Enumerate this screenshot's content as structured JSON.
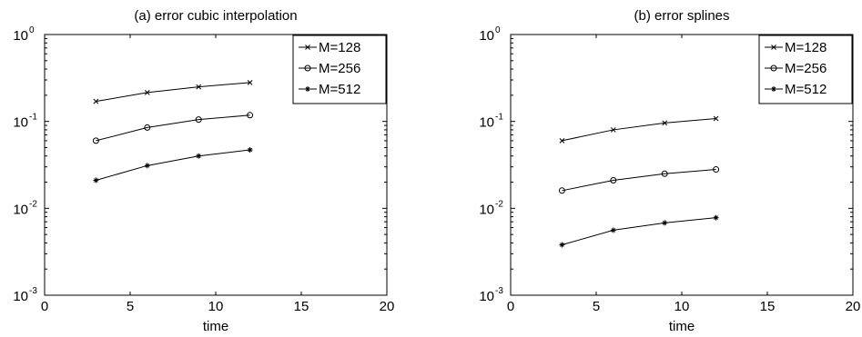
{
  "chart_data": [
    {
      "type": "line",
      "title": "(a) error cubic interpolation",
      "xlabel": "time",
      "ylabel": "",
      "xlim": [
        0,
        20
      ],
      "ylim": [
        0.001,
        1
      ],
      "yscale": "log",
      "grid": false,
      "legend_position": "top-right",
      "x_ticks": [
        "0",
        "5",
        "10",
        "15",
        "20"
      ],
      "y_ticks": [
        {
          "base": "10",
          "exp": "-3"
        },
        {
          "base": "10",
          "exp": "-2"
        },
        {
          "base": "10",
          "exp": "-1"
        },
        {
          "base": "10",
          "exp": "0"
        }
      ],
      "x": [
        3,
        6,
        9,
        12
      ],
      "series": [
        {
          "name": "M=128",
          "marker": "x",
          "values": [
            0.17,
            0.215,
            0.25,
            0.28
          ]
        },
        {
          "name": "M=256",
          "marker": "o",
          "values": [
            0.06,
            0.085,
            0.105,
            0.118
          ]
        },
        {
          "name": "M=512",
          "marker": "*",
          "values": [
            0.021,
            0.031,
            0.04,
            0.047
          ]
        }
      ]
    },
    {
      "type": "line",
      "title": "(b) error splines",
      "xlabel": "time",
      "ylabel": "",
      "xlim": [
        0,
        20
      ],
      "ylim": [
        0.001,
        1
      ],
      "yscale": "log",
      "grid": false,
      "legend_position": "top-right",
      "x_ticks": [
        "0",
        "5",
        "10",
        "15",
        "20"
      ],
      "y_ticks": [
        {
          "base": "10",
          "exp": "-3"
        },
        {
          "base": "10",
          "exp": "-2"
        },
        {
          "base": "10",
          "exp": "-1"
        },
        {
          "base": "10",
          "exp": "0"
        }
      ],
      "x": [
        3,
        6,
        9,
        12
      ],
      "series": [
        {
          "name": "M=128",
          "marker": "x",
          "values": [
            0.06,
            0.08,
            0.096,
            0.108
          ]
        },
        {
          "name": "M=256",
          "marker": "o",
          "values": [
            0.016,
            0.021,
            0.025,
            0.028
          ]
        },
        {
          "name": "M=512",
          "marker": "*",
          "values": [
            0.0038,
            0.0056,
            0.0068,
            0.0078
          ]
        }
      ]
    }
  ]
}
